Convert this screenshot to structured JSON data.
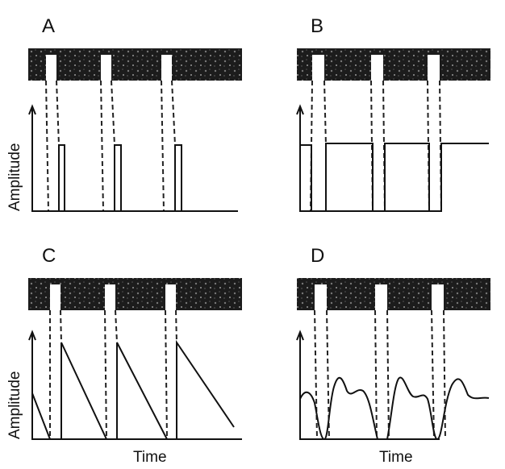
{
  "panels": [
    {
      "label": "A",
      "y_axis_label": "Amplitude"
    },
    {
      "label": "B"
    },
    {
      "label": "C",
      "y_axis_label": "Amplitude",
      "x_axis_label": "Time"
    },
    {
      "label": "D",
      "x_axis_label": "Time"
    }
  ]
}
